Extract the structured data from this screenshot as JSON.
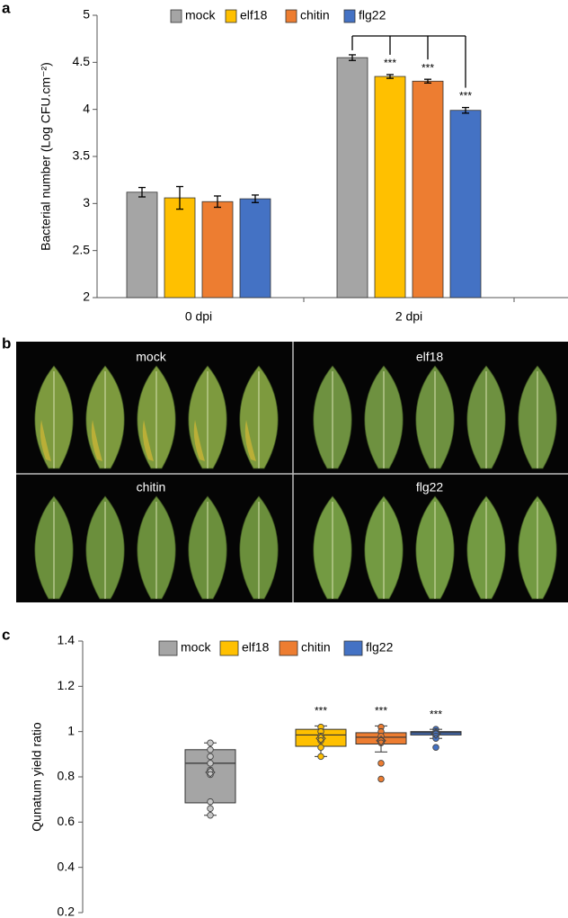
{
  "chart_data": [
    {
      "type": "bar",
      "panel_label": "a",
      "y_label": "Bacterial number (Log CFU.cm⁻²)",
      "categories": [
        "0 dpi",
        "2 dpi"
      ],
      "series": [
        {
          "name": "mock",
          "color": "#a5a5a5",
          "values": [
            3.12,
            4.55
          ],
          "errors": [
            0.05,
            0.03
          ]
        },
        {
          "name": "elf18",
          "color": "#ffc000",
          "values": [
            3.06,
            4.35
          ],
          "errors": [
            0.12,
            0.02
          ],
          "significance": [
            null,
            "***"
          ]
        },
        {
          "name": "chitin",
          "color": "#ed7d31",
          "values": [
            3.02,
            4.3
          ],
          "errors": [
            0.06,
            0.02
          ],
          "significance": [
            null,
            "***"
          ]
        },
        {
          "name": "flg22",
          "color": "#4472c4",
          "values": [
            3.05,
            3.99
          ],
          "errors": [
            0.04,
            0.03
          ],
          "significance": [
            null,
            "***"
          ]
        }
      ],
      "ylim": [
        2,
        5
      ],
      "yticks": [
        2,
        2.5,
        3,
        3.5,
        4,
        4.5,
        5
      ],
      "legend": "top"
    },
    {
      "type": "box",
      "panel_label": "c",
      "y_label": "Qunatum yield ratio",
      "series": [
        {
          "name": "mock",
          "color": "#a5a5a5",
          "min": 0.63,
          "q1": 0.685,
          "median": 0.86,
          "q3": 0.92,
          "max": 0.95,
          "mean": 0.82,
          "points": [
            0.95,
            0.92,
            0.89,
            0.86,
            0.83,
            0.81,
            0.69,
            0.66,
            0.63
          ]
        },
        {
          "name": "elf18",
          "color": "#ffc000",
          "min": 0.89,
          "q1": 0.935,
          "median": 0.985,
          "q3": 1.01,
          "max": 1.025,
          "mean": 0.97,
          "points": [
            1.02,
            1.0,
            0.98,
            0.96,
            0.93,
            0.89
          ],
          "significance": "***"
        },
        {
          "name": "chitin",
          "color": "#ed7d31",
          "min": 0.91,
          "q1": 0.945,
          "median": 0.975,
          "q3": 0.995,
          "max": 1.025,
          "mean": 0.96,
          "points": [
            1.02,
            1.0,
            0.98,
            0.96,
            0.95,
            0.86,
            0.79
          ],
          "significance": "***"
        },
        {
          "name": "flg22",
          "color": "#4472c4",
          "min": 0.97,
          "q1": 0.985,
          "median": 0.995,
          "q3": 1.0,
          "max": 1.01,
          "mean": 0.99,
          "points": [
            1.01,
            1.0,
            0.99,
            0.98,
            0.97,
            0.93
          ],
          "significance": "***"
        }
      ],
      "ylim": [
        0.2,
        1.4
      ],
      "yticks": [
        0.2,
        0.4,
        0.6,
        0.8,
        1,
        1.2,
        1.4
      ],
      "legend": "top"
    }
  ],
  "photo": {
    "panel_label": "b",
    "panels": [
      "mock",
      "elf18",
      "chitin",
      "flg22"
    ]
  }
}
